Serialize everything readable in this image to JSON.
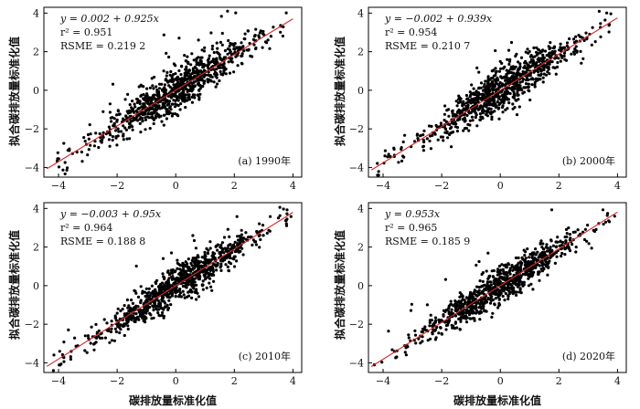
{
  "figure": {
    "xlabel": "碳排放量标准化值",
    "ylabel": "拟合碳排放量标准化值"
  },
  "chart_data": [
    {
      "type": "scatter",
      "panel_label": "(a) 1990年",
      "equation": "y = 0.002 + 0.925x",
      "r2": "r² = 0.951",
      "rmse": "RSME = 0.219 2",
      "intercept": 0.002,
      "slope": 0.925,
      "xlim": [
        -4.5,
        4.3
      ],
      "ylim": [
        -4.5,
        4.3
      ],
      "xticks": [
        -4,
        -2,
        0,
        2,
        4
      ],
      "yticks": [
        -4,
        -2,
        0,
        2,
        4
      ],
      "tick_labels": [
        "−4",
        "−2",
        "0",
        "2",
        "4"
      ],
      "spread": 0.45,
      "seed": 11
    },
    {
      "type": "scatter",
      "panel_label": "(b) 2000年",
      "equation": "y = −0.002 + 0.939x",
      "r2": "r² = 0.954",
      "rmse": "RSME = 0.210 7",
      "intercept": -0.002,
      "slope": 0.939,
      "xlim": [
        -4.5,
        4.3
      ],
      "ylim": [
        -4.5,
        4.3
      ],
      "xticks": [
        -4,
        -2,
        0,
        2,
        4
      ],
      "yticks": [
        -4,
        -2,
        0,
        2,
        4
      ],
      "tick_labels": [
        "−4",
        "−2",
        "0",
        "2",
        "4"
      ],
      "spread": 0.42,
      "seed": 23
    },
    {
      "type": "scatter",
      "panel_label": "(c) 2010年",
      "equation": "y = −0.003 + 0.95x",
      "r2": "r² = 0.964",
      "rmse": "RSME = 0.188 8",
      "intercept": -0.003,
      "slope": 0.95,
      "xlim": [
        -4.5,
        4.3
      ],
      "ylim": [
        -4.5,
        4.3
      ],
      "xticks": [
        -4,
        -2,
        0,
        2,
        4
      ],
      "yticks": [
        -4,
        -2,
        0,
        2,
        4
      ],
      "tick_labels": [
        "−4",
        "−2",
        "0",
        "2",
        "4"
      ],
      "spread": 0.38,
      "seed": 37
    },
    {
      "type": "scatter",
      "panel_label": "(d) 2020年",
      "equation": "y = 0.953x",
      "r2": "r² = 0.965",
      "rmse": "RSME = 0.185 9",
      "intercept": 0.0,
      "slope": 0.953,
      "xlim": [
        -4.5,
        4.3
      ],
      "ylim": [
        -4.5,
        4.3
      ],
      "xticks": [
        -4,
        -2,
        0,
        2,
        4
      ],
      "yticks": [
        -4,
        -2,
        0,
        2,
        4
      ],
      "tick_labels": [
        "−4",
        "−2",
        "0",
        "2",
        "4"
      ],
      "spread": 0.36,
      "seed": 53
    }
  ],
  "colors": {
    "points": "#000000",
    "fit_line": "#d62728",
    "axes": "#000000"
  }
}
